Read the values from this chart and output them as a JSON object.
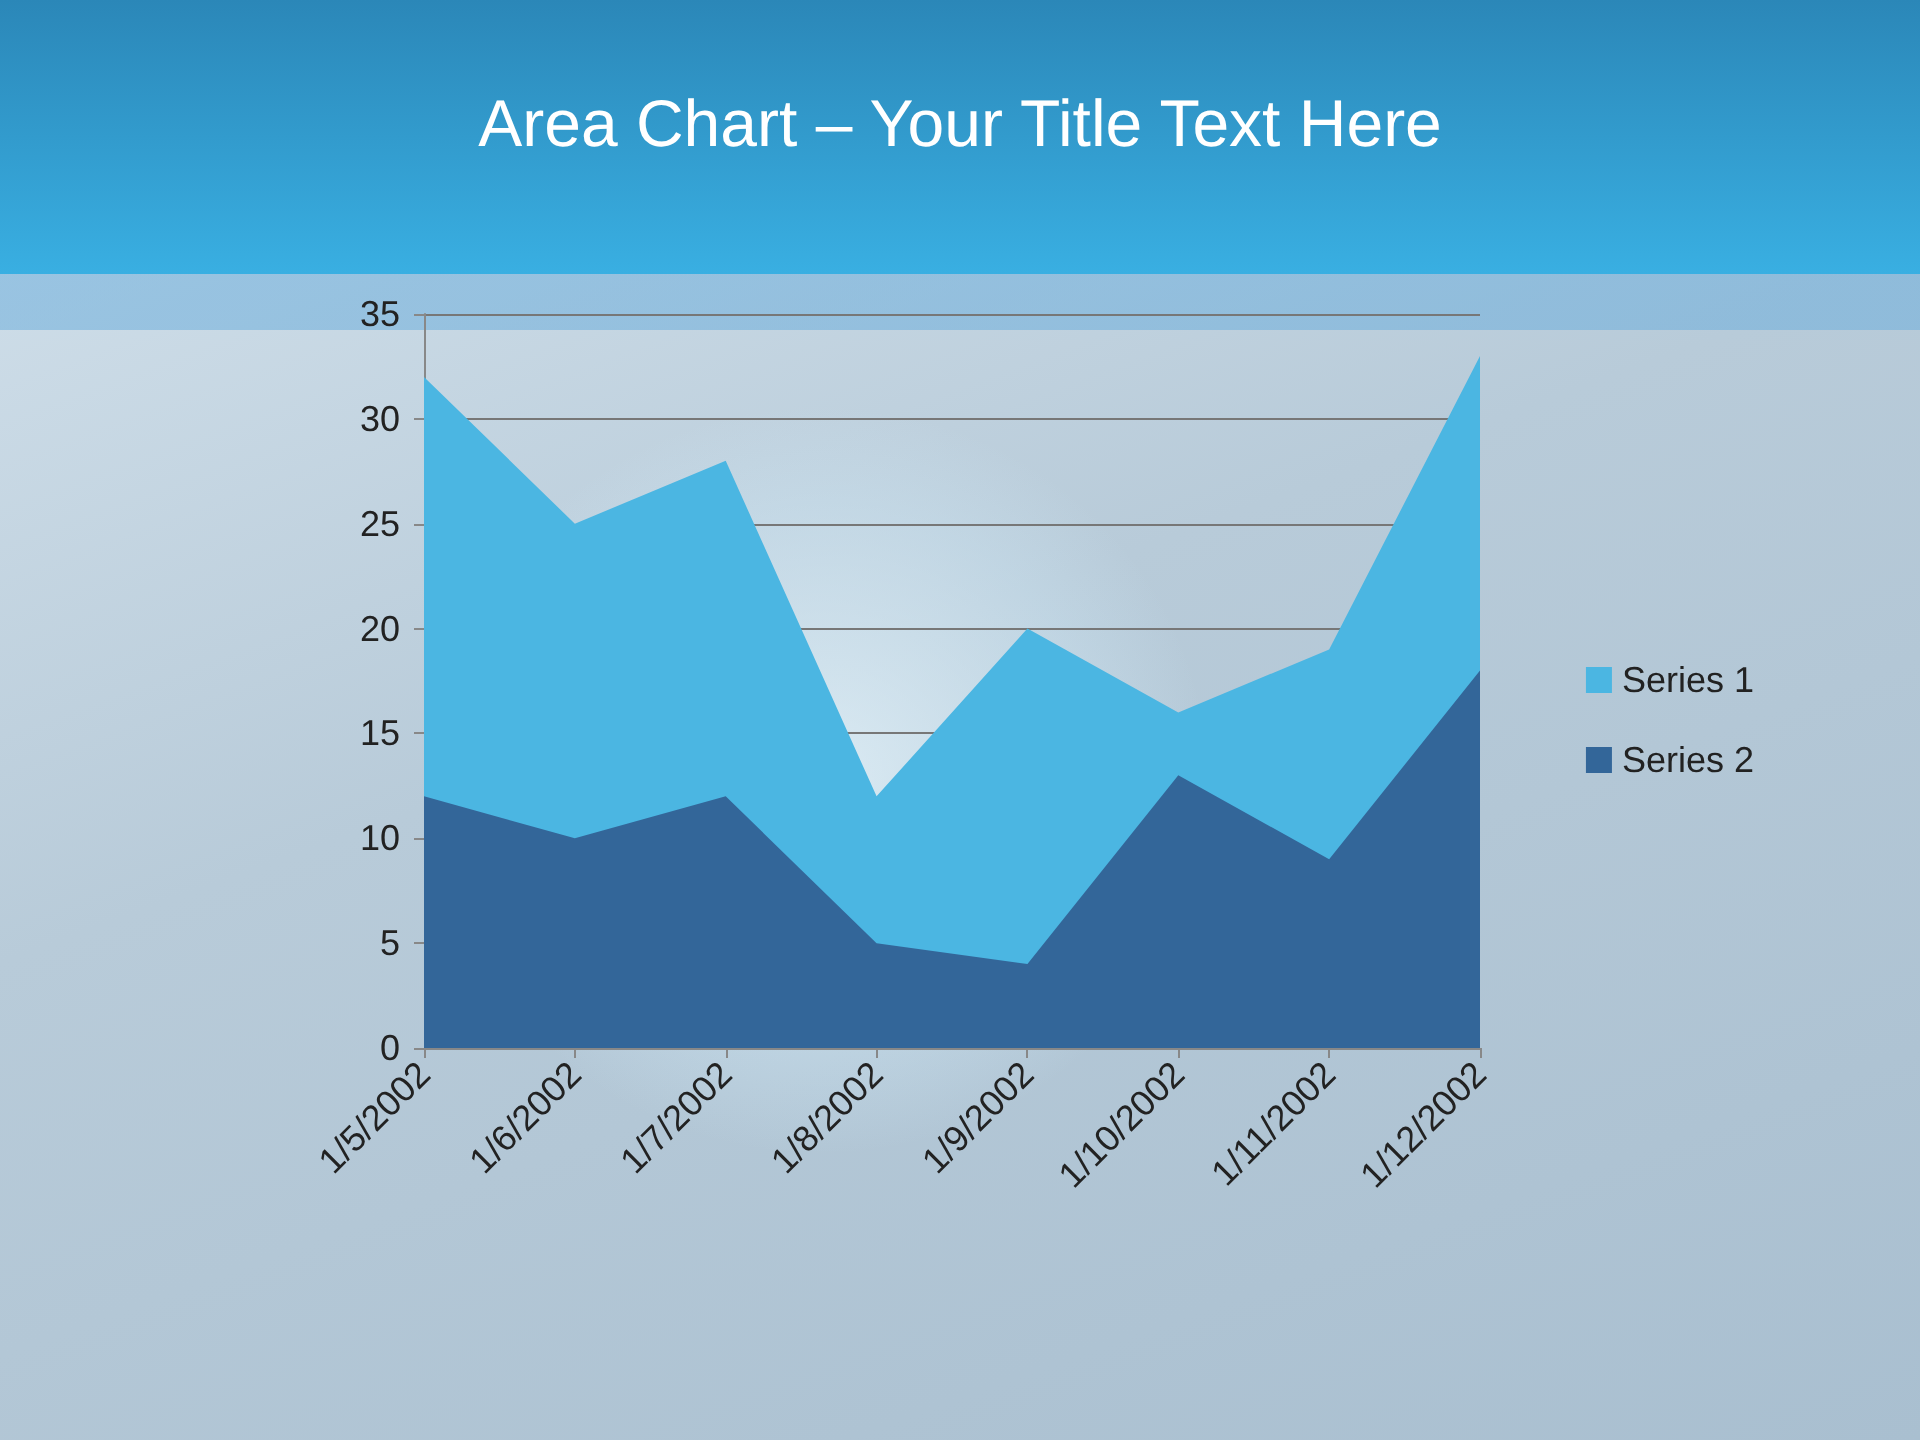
{
  "chart_data": {
    "type": "area",
    "title": "Area Chart – Your Title Text Here",
    "categories": [
      "1/5/2002",
      "1/6/2002",
      "1/7/2002",
      "1/8/2002",
      "1/9/2002",
      "1/10/2002",
      "1/11/2002",
      "1/12/2002"
    ],
    "series": [
      {
        "name": "Series 1",
        "color": "#4bb6e2",
        "values": [
          32,
          25,
          28,
          12,
          20,
          16,
          19,
          33
        ]
      },
      {
        "name": "Series 2",
        "color": "#336699",
        "values": [
          12,
          10,
          12,
          5,
          4,
          13,
          9,
          18
        ]
      }
    ],
    "ylim": [
      0,
      35
    ],
    "yticks": [
      0,
      5,
      10,
      15,
      20,
      25,
      30,
      35
    ],
    "grid": "y",
    "legend": "right"
  }
}
